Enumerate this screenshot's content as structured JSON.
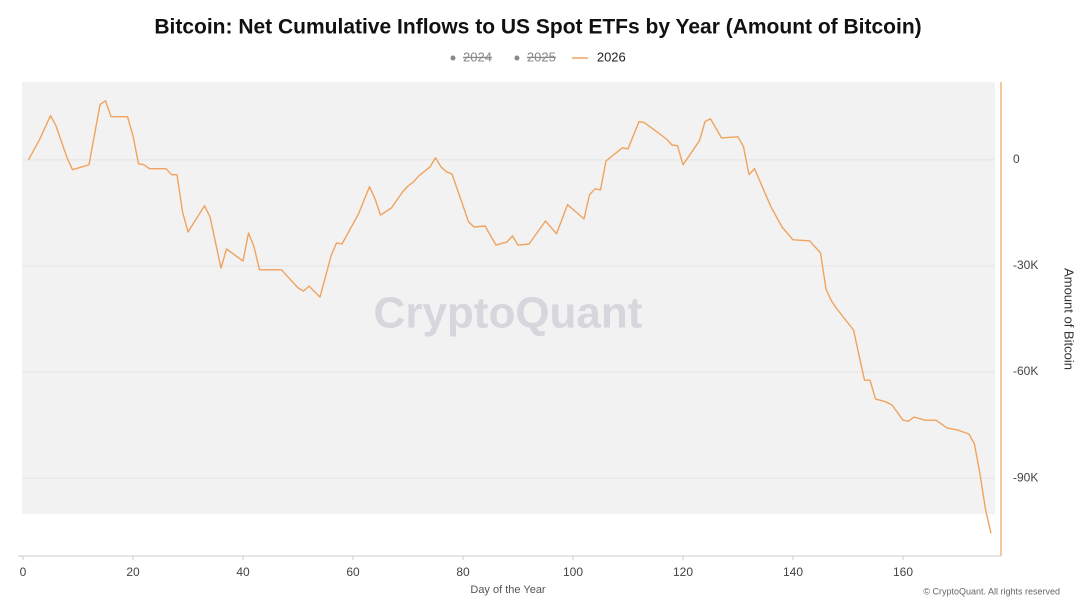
{
  "chart_data": {
    "type": "line",
    "title": "Bitcoin: Net Cumulative Inflows to US Spot ETFs by Year (Amount of Bitcoin)",
    "legend": [
      {
        "name": "2024",
        "color": "#888888",
        "hidden": true
      },
      {
        "name": "2025",
        "color": "#888888",
        "hidden": true
      },
      {
        "name": "2026",
        "color": "#f0a35e",
        "hidden": false
      }
    ],
    "x_label": "Day of the Year",
    "y_label": "Amount of Bitcoin",
    "watermark": "CryptoQuant",
    "copyright": "© CryptoQuant. All rights reserved",
    "x": [
      1,
      3,
      5,
      6,
      8,
      9,
      12,
      14,
      15,
      16,
      19,
      20,
      21,
      22,
      23,
      26,
      27,
      28,
      29,
      30,
      33,
      34,
      36,
      37,
      40,
      41,
      42,
      43,
      47,
      50,
      51,
      52,
      54,
      56,
      57,
      58,
      61,
      63,
      64,
      65,
      67,
      69,
      70,
      71,
      72,
      74,
      75,
      76,
      77,
      78,
      81,
      82,
      84,
      86,
      88,
      89,
      90,
      92,
      95,
      97,
      99,
      102,
      103,
      104,
      105,
      106,
      109,
      110,
      112,
      113,
      117,
      118,
      119,
      120,
      123,
      124,
      125,
      127,
      130,
      131,
      132,
      133,
      136,
      138,
      140,
      143,
      145,
      146,
      147,
      148,
      151,
      153,
      154,
      155,
      157,
      158,
      160,
      161,
      162,
      164,
      166,
      168,
      170,
      172,
      173,
      174,
      175,
      176
    ],
    "series": [
      {
        "name": "2026",
        "color": "#f0a35e",
        "values": [
          0,
          5700,
          12500,
          9600,
          600,
          -2800,
          -1400,
          15600,
          16700,
          12200,
          12200,
          6800,
          -1100,
          -1400,
          -2500,
          -2500,
          -4200,
          -4200,
          -14700,
          -20400,
          -13000,
          -16100,
          -30600,
          -25200,
          -28600,
          -20700,
          -24600,
          -31100,
          -31100,
          -36200,
          -37100,
          -35700,
          -38800,
          -27200,
          -23500,
          -23800,
          -15300,
          -7600,
          -11000,
          -15600,
          -13600,
          -9100,
          -7400,
          -6200,
          -4500,
          -2000,
          600,
          -2000,
          -3400,
          -4000,
          -17500,
          -19000,
          -18700,
          -24100,
          -23200,
          -21500,
          -24100,
          -23800,
          -17300,
          -20900,
          -12700,
          -16700,
          -9900,
          -8200,
          -8500,
          -300,
          3400,
          3100,
          10800,
          10500,
          5900,
          4200,
          4000,
          -1400,
          5400,
          10800,
          11600,
          6200,
          6500,
          3700,
          -4200,
          -2500,
          -13300,
          -19000,
          -22600,
          -22900,
          -26300,
          -36500,
          -39900,
          -42200,
          -48100,
          -62300,
          -62300,
          -67600,
          -68500,
          -69300,
          -73600,
          -73900,
          -72700,
          -73600,
          -73600,
          -75800,
          -76400,
          -77500,
          -80400,
          -88900,
          -98800,
          -105600
        ]
      }
    ],
    "xlim": [
      0,
      178
    ],
    "xticks": [
      0,
      20,
      40,
      60,
      80,
      100,
      120,
      140,
      160
    ],
    "ylim": [
      -112000,
      22000
    ],
    "yticks": [
      0,
      {
        "value": -30000,
        "label": "-30K"
      },
      {
        "value": -60000,
        "label": "-60K"
      },
      {
        "value": -90000,
        "label": "-90K"
      }
    ],
    "y_axis_side": "right",
    "grid": true
  }
}
